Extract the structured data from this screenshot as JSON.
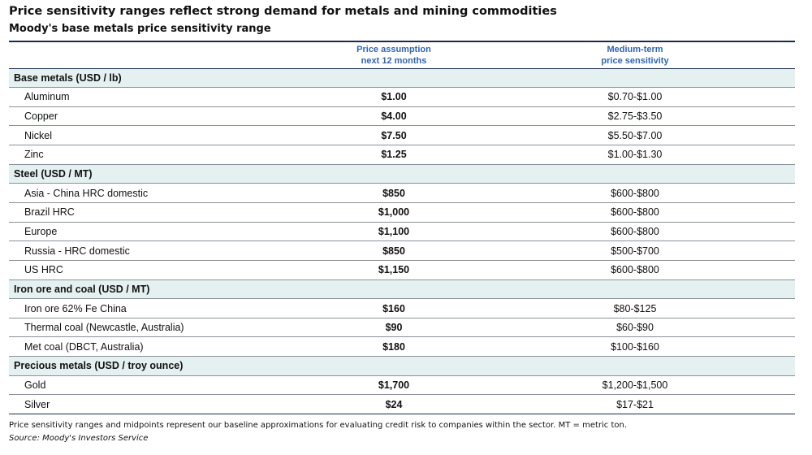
{
  "title": "Price sensitivity ranges reflect strong demand for metals and mining commodities",
  "subtitle": "Moody's base metals price sensitivity range",
  "headers": {
    "col1": "",
    "col2_line1": "Price assumption",
    "col2_line2": "next 12 months",
    "col3_line1": "Medium-term",
    "col3_line2": "price sensitivity"
  },
  "groups": [
    {
      "category": "Base metals (USD / lb)",
      "items": [
        {
          "name": "Aluminum",
          "price": "$1.00",
          "range": "$0.70-$1.00"
        },
        {
          "name": "Copper",
          "price": "$4.00",
          "range": "$2.75-$3.50"
        },
        {
          "name": "Nickel",
          "price": "$7.50",
          "range": "$5.50-$7.00"
        },
        {
          "name": "Zinc",
          "price": "$1.25",
          "range": "$1.00-$1.30"
        }
      ]
    },
    {
      "category": "Steel  (USD / MT)",
      "items": [
        {
          "name": "Asia - China HRC domestic",
          "price": "$850",
          "range": "$600-$800"
        },
        {
          "name": "Brazil HRC",
          "price": "$1,000",
          "range": "$600-$800"
        },
        {
          "name": "Europe",
          "price": "$1,100",
          "range": "$600-$800"
        },
        {
          "name": "Russia - HRC domestic",
          "price": "$850",
          "range": "$500-$700"
        },
        {
          "name": "US HRC",
          "price": "$1,150",
          "range": "$600-$800"
        }
      ]
    },
    {
      "category": "Iron ore and coal (USD / MT)",
      "items": [
        {
          "name": "Iron ore 62% Fe China",
          "price": "$160",
          "range": "$80-$125"
        },
        {
          "name": "Thermal coal (Newcastle, Australia)",
          "price": "$90",
          "range": "$60-$90"
        },
        {
          "name": "Met coal (DBCT, Australia)",
          "price": "$180",
          "range": "$100-$160"
        }
      ]
    },
    {
      "category": "Precious metals (USD / troy ounce)",
      "items": [
        {
          "name": "Gold",
          "price": "$1,700",
          "range": "$1,200-$1,500"
        },
        {
          "name": "Silver",
          "price": "$24",
          "range": "$17-$21"
        }
      ]
    }
  ],
  "footnote": "Price sensitivity ranges and midpoints represent our baseline approximations for evaluating credit risk to companies within the sector. MT = metric ton.",
  "source": "Source: Moody's Investors Service"
}
